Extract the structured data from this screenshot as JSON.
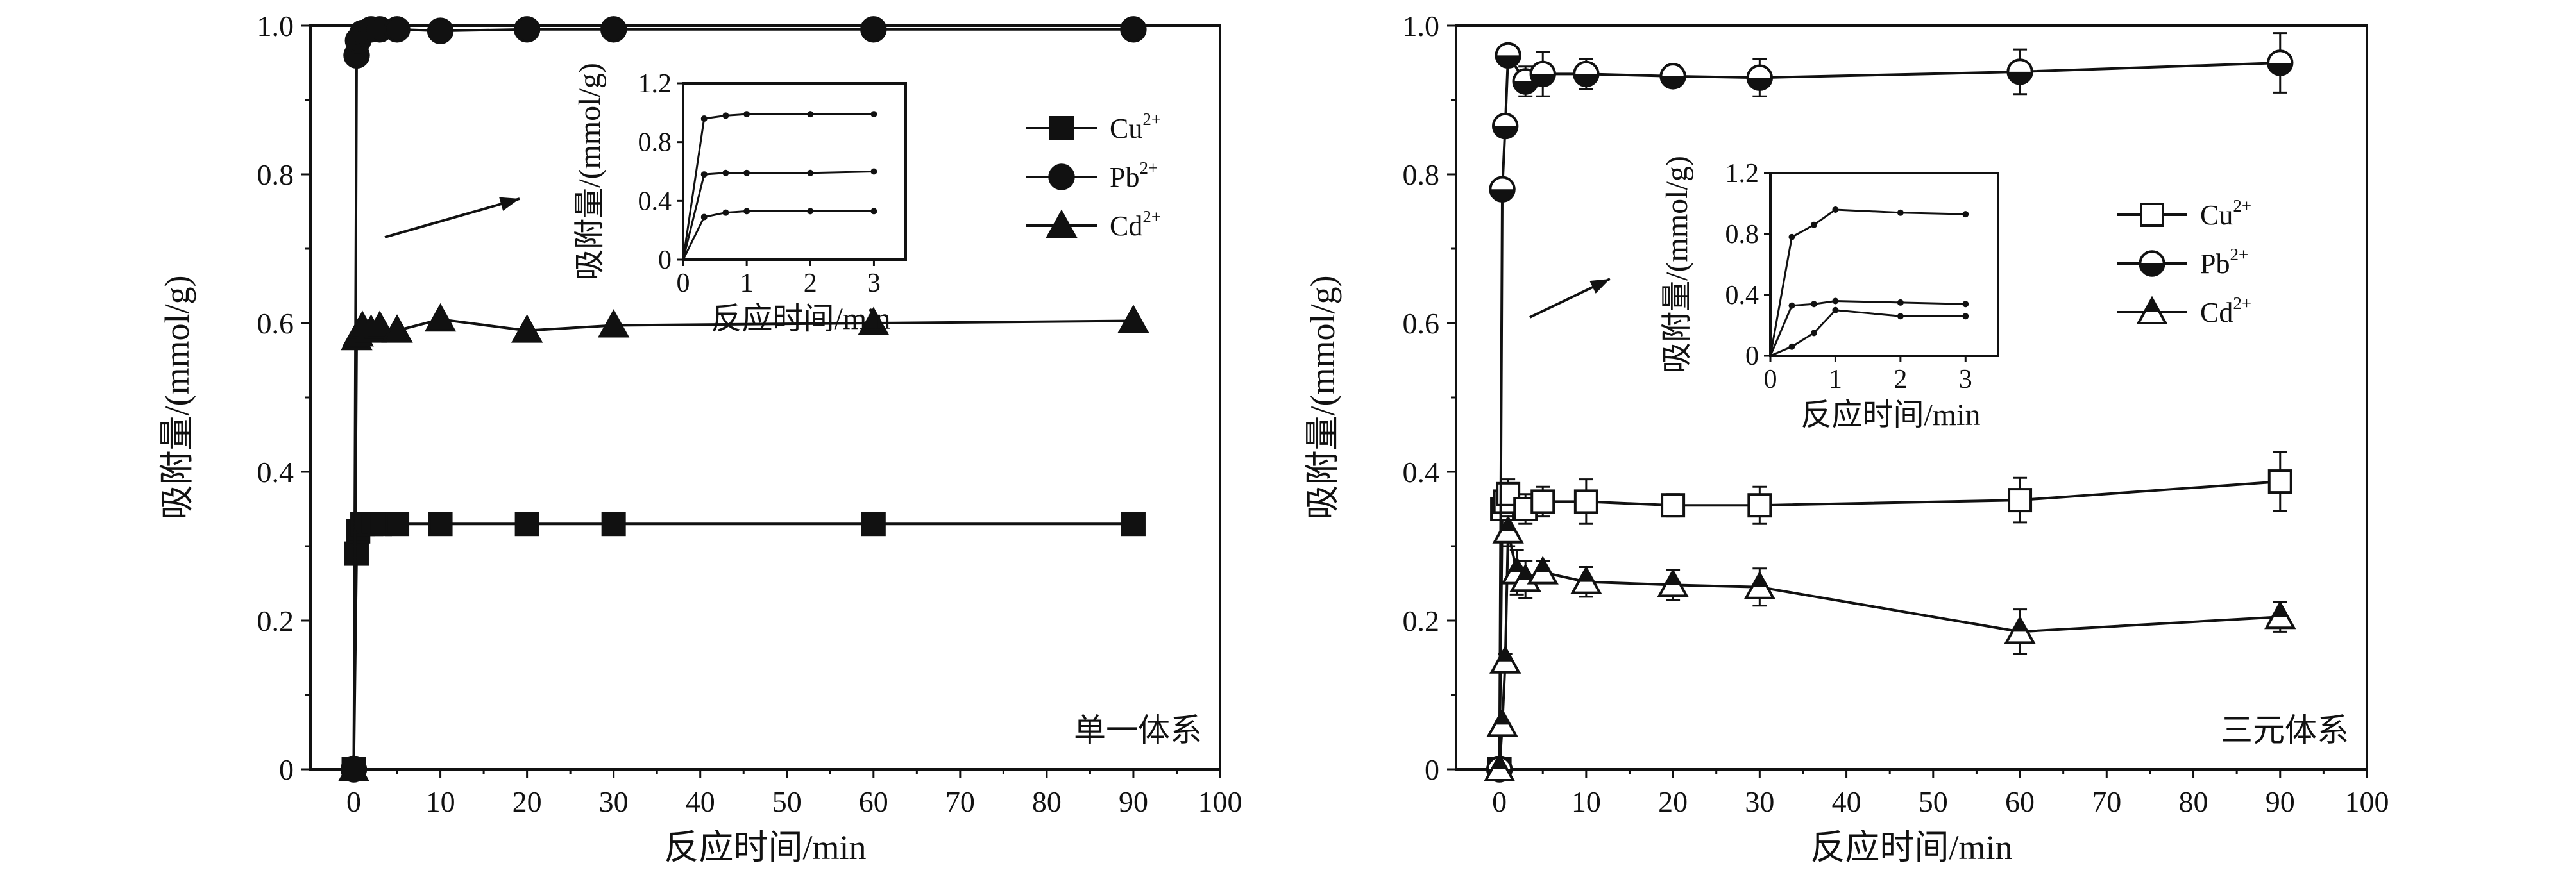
{
  "figure": {
    "colors": {
      "ink": "#111111",
      "background": "#ffffff",
      "open_fill": "#ffffff"
    }
  },
  "chart_data": [
    {
      "type": "line",
      "panel_label": "单一体系",
      "xlabel": "反应时间/min",
      "ylabel": "吸附量/(mmol/g)",
      "xlim": [
        -5,
        100
      ],
      "ylim": [
        0,
        1.0
      ],
      "xticks": [
        0,
        10,
        20,
        30,
        40,
        50,
        60,
        70,
        80,
        90,
        100
      ],
      "yticks": [
        0,
        0.2,
        0.4,
        0.6,
        0.8,
        1.0
      ],
      "ytick_labels": [
        "0",
        "0.2",
        "0.4",
        "0.6",
        "0.8",
        "1.0"
      ],
      "series": [
        {
          "name": "Cu",
          "ion_charge": "2+",
          "marker": "square",
          "filled": true,
          "x": [
            0,
            0.33,
            0.5,
            1,
            2,
            3,
            5,
            10,
            20,
            30,
            60,
            90
          ],
          "y": [
            0,
            0.29,
            0.32,
            0.33,
            0.33,
            0.33,
            0.33,
            0.33,
            0.33,
            0.33,
            0.33,
            0.33
          ]
        },
        {
          "name": "Pb",
          "ion_charge": "2+",
          "marker": "circle",
          "filled": true,
          "x": [
            0,
            0.33,
            0.5,
            1,
            2,
            3,
            5,
            10,
            20,
            30,
            60,
            90
          ],
          "y": [
            0,
            0.96,
            0.98,
            0.99,
            0.995,
            0.995,
            0.995,
            0.993,
            0.995,
            0.995,
            0.995,
            0.995
          ]
        },
        {
          "name": "Cd",
          "ion_charge": "2+",
          "marker": "triangle",
          "filled": true,
          "x": [
            0,
            0.33,
            0.5,
            1,
            2,
            3,
            5,
            10,
            20,
            30,
            60,
            90
          ],
          "y": [
            0,
            0.58,
            0.585,
            0.595,
            0.59,
            0.595,
            0.59,
            0.605,
            0.59,
            0.597,
            0.6,
            0.603
          ]
        }
      ],
      "inset": {
        "xlabel": "反应时间/min",
        "ylabel": "吸附量/(mmol/g)",
        "xlim": [
          0,
          3.5
        ],
        "ylim": [
          0,
          1.2
        ],
        "xticks": [
          0,
          1,
          2,
          3
        ],
        "yticks": [
          0,
          0.4,
          0.8,
          1.2
        ],
        "ytick_labels": [
          "0",
          "0.4",
          "0.8",
          "1.2"
        ],
        "series": [
          {
            "name": "Cu",
            "x": [
              0,
              0.33,
              0.67,
              1,
              2,
              3
            ],
            "y": [
              0,
              0.29,
              0.32,
              0.33,
              0.33,
              0.33
            ]
          },
          {
            "name": "Pb",
            "x": [
              0,
              0.33,
              0.67,
              1,
              2,
              3
            ],
            "y": [
              0,
              0.96,
              0.98,
              0.99,
              0.99,
              0.99
            ]
          },
          {
            "name": "Cd",
            "x": [
              0,
              0.33,
              0.67,
              1,
              2,
              3
            ],
            "y": [
              0,
              0.58,
              0.59,
              0.59,
              0.59,
              0.6
            ]
          }
        ]
      }
    },
    {
      "type": "line",
      "panel_label": "三元体系",
      "xlabel": "反应时间/min",
      "ylabel": "吸附量/(mmol/g)",
      "xlim": [
        -5,
        100
      ],
      "ylim": [
        0,
        1.0
      ],
      "xticks": [
        0,
        10,
        20,
        30,
        40,
        50,
        60,
        70,
        80,
        90,
        100
      ],
      "yticks": [
        0,
        0.2,
        0.4,
        0.6,
        0.8,
        1.0
      ],
      "ytick_labels": [
        "0",
        "0.2",
        "0.4",
        "0.6",
        "0.8",
        "1.0"
      ],
      "series": [
        {
          "name": "Cu",
          "ion_charge": "2+",
          "marker": "square",
          "filled": false,
          "x": [
            0,
            0.33,
            0.67,
            1,
            3,
            5,
            10,
            20,
            30,
            60,
            90
          ],
          "y": [
            0,
            0.35,
            0.36,
            0.37,
            0.35,
            0.36,
            0.36,
            0.355,
            0.355,
            0.362,
            0.387
          ],
          "err": [
            0,
            0.01,
            0.01,
            0.02,
            0.02,
            0.02,
            0.03,
            0.015,
            0.025,
            0.03,
            0.04
          ]
        },
        {
          "name": "Pb",
          "ion_charge": "2+",
          "marker": "circle",
          "filled": false,
          "x": [
            0,
            0.33,
            0.67,
            1,
            3,
            5,
            10,
            20,
            30,
            60,
            90
          ],
          "y": [
            0,
            0.78,
            0.865,
            0.96,
            0.925,
            0.935,
            0.935,
            0.932,
            0.93,
            0.938,
            0.95
          ],
          "err": [
            0,
            0.01,
            0.01,
            0.01,
            0.02,
            0.03,
            0.02,
            0.015,
            0.025,
            0.03,
            0.04
          ]
        },
        {
          "name": "Cd",
          "ion_charge": "2+",
          "marker": "triangle",
          "filled": false,
          "x": [
            0,
            0.33,
            0.67,
            1,
            2,
            3,
            5,
            10,
            20,
            30,
            60,
            90
          ],
          "y": [
            0,
            0.06,
            0.145,
            0.32,
            0.265,
            0.255,
            0.265,
            0.252,
            0.248,
            0.245,
            0.185,
            0.205
          ],
          "err": [
            0,
            0.005,
            0.01,
            0.02,
            0.03,
            0.025,
            0.015,
            0.02,
            0.02,
            0.025,
            0.03,
            0.02
          ]
        }
      ],
      "inset": {
        "xlabel": "反应时间/min",
        "ylabel": "吸附量/(mmol/g)",
        "xlim": [
          0,
          3.5
        ],
        "ylim": [
          0,
          1.2
        ],
        "xticks": [
          0,
          1,
          2,
          3
        ],
        "yticks": [
          0,
          0.4,
          0.8,
          1.2
        ],
        "ytick_labels": [
          "0",
          "0.4",
          "0.8",
          "1.2"
        ],
        "series": [
          {
            "name": "Cu",
            "x": [
              0,
              0.33,
              0.67,
              1,
              2,
              3
            ],
            "y": [
              0,
              0.33,
              0.34,
              0.36,
              0.35,
              0.34
            ]
          },
          {
            "name": "Pb",
            "x": [
              0,
              0.33,
              0.67,
              1,
              2,
              3
            ],
            "y": [
              0,
              0.78,
              0.86,
              0.96,
              0.94,
              0.93
            ]
          },
          {
            "name": "Cd",
            "x": [
              0,
              0.33,
              0.67,
              1,
              2,
              3
            ],
            "y": [
              0,
              0.06,
              0.15,
              0.3,
              0.26,
              0.26
            ]
          }
        ]
      }
    }
  ]
}
